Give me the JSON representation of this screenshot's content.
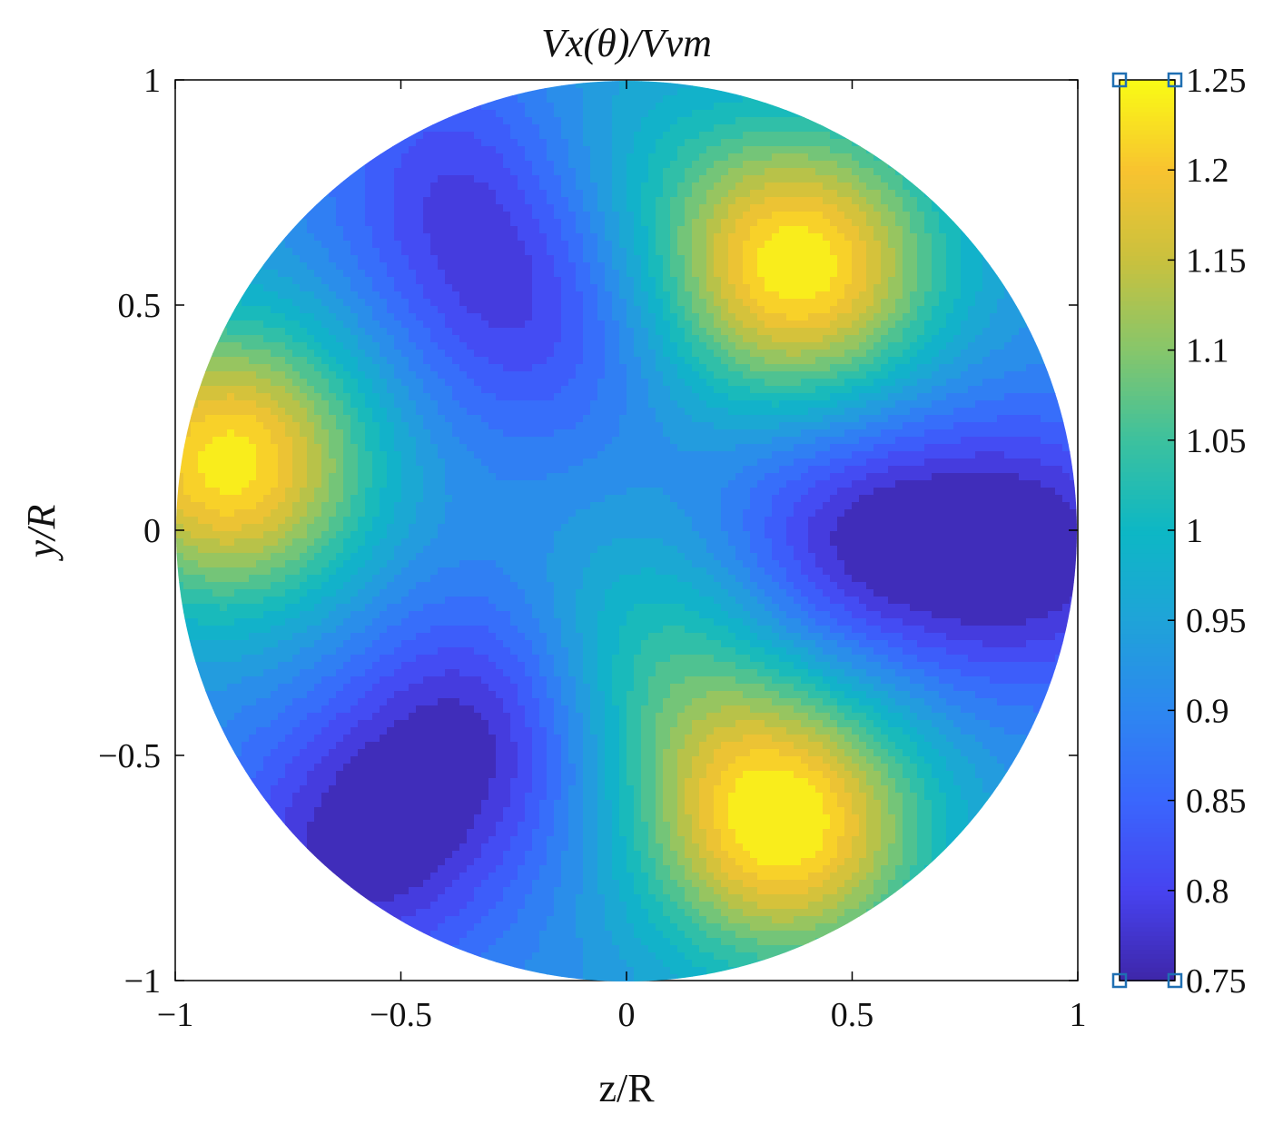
{
  "chart_data": {
    "type": "heatmap",
    "subtype": "filled-contour-polar-disk",
    "title": "Vx(θ)/Vvm",
    "xlabel": "z/R",
    "ylabel": "y/R",
    "xlim": [
      -1,
      1
    ],
    "ylim": [
      -1,
      1
    ],
    "x_ticks": [
      -1,
      -0.5,
      0,
      0.5,
      1
    ],
    "y_ticks": [
      -1,
      -0.5,
      0,
      0.5,
      1
    ],
    "x_tick_labels": [
      "−1",
      "−0.5",
      "0",
      "0.5",
      "1"
    ],
    "y_tick_labels": [
      "−1",
      "−0.5",
      "0",
      "0.5",
      "1"
    ],
    "colorbar": {
      "limits": [
        0.75,
        1.25
      ],
      "ticks": [
        0.75,
        0.8,
        0.85,
        0.9,
        0.95,
        1,
        1.05,
        1.1,
        1.15,
        1.2,
        1.25
      ],
      "tick_labels": [
        "0.75",
        "0.8",
        "0.85",
        "0.9",
        "0.95",
        "1",
        "1.05",
        "1.1",
        "1.15",
        "1.2",
        "1.25"
      ],
      "colormap": "parula",
      "colormap_stops": [
        "#3e26a8",
        "#4743f0",
        "#3a66fd",
        "#2d87f0",
        "#1fa3d8",
        "#0db7c5",
        "#3cc19e",
        "#86c66b",
        "#c9c13e",
        "#f8c330",
        "#f9fb15"
      ],
      "location": "right",
      "handle_color": "#1f6fb2"
    },
    "features": [
      {
        "z": 0.38,
        "y": 0.58,
        "value": 1.25,
        "label": "upper-right high"
      },
      {
        "z": -0.88,
        "y": 0.15,
        "value": 1.24,
        "label": "left high"
      },
      {
        "z": 0.35,
        "y": -0.65,
        "value": 1.25,
        "label": "lower-right high"
      },
      {
        "z": 0.5,
        "y": -0.02,
        "value": 0.77,
        "label": "right low inner"
      },
      {
        "z": 0.9,
        "y": -0.05,
        "value": 0.76,
        "label": "right low outer"
      },
      {
        "z": -0.35,
        "y": 0.78,
        "value": 0.8,
        "label": "top-left low"
      },
      {
        "z": -0.2,
        "y": 0.48,
        "value": 0.81,
        "label": "upper low"
      },
      {
        "z": -0.3,
        "y": -0.42,
        "value": 0.77,
        "label": "lower-left low"
      },
      {
        "z": -0.6,
        "y": -0.72,
        "value": 0.77,
        "label": "bottom-left low"
      },
      {
        "z": -0.07,
        "y": 0.8,
        "value": 0.99,
        "label": "top teal"
      },
      {
        "z": 0.05,
        "y": -0.3,
        "value": 1.05,
        "label": "lower green wedge"
      }
    ]
  }
}
